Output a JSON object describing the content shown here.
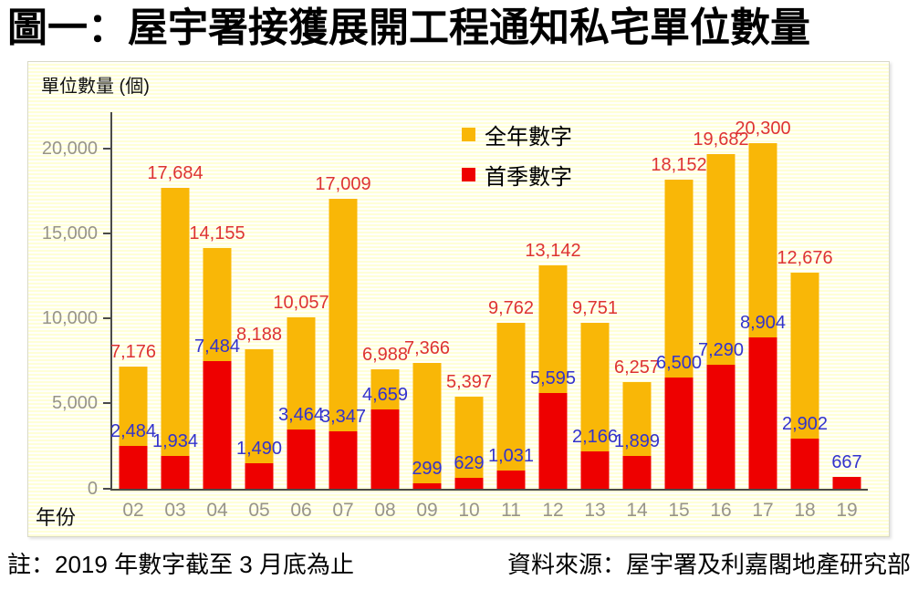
{
  "title": "圖一：屋宇署接獲展開工程通知私宅單位數量",
  "footer": {
    "note": "註：2019 年數字截至 3 月底為止",
    "source": "資料來源：屋宇署及利嘉閣地產研究部"
  },
  "chart_data": {
    "type": "bar",
    "title": "圖一：屋宇署接獲展開工程通知私宅單位數量",
    "xlabel": "年份",
    "ylabel": "單位數量 (個)",
    "ylim": [
      0,
      22000
    ],
    "yticks": [
      0,
      5000,
      10000,
      15000,
      20000
    ],
    "ytick_labels": [
      "0",
      "5,000",
      "10,000",
      "15,000",
      "20,000"
    ],
    "grid": false,
    "legend_position": "top-center",
    "categories": [
      "02",
      "03",
      "04",
      "05",
      "06",
      "07",
      "08",
      "09",
      "10",
      "11",
      "12",
      "13",
      "14",
      "15",
      "16",
      "17",
      "18",
      "19"
    ],
    "series": [
      {
        "name": "全年數字",
        "color": "#F9B707",
        "label_color": "#DD3333",
        "values": [
          7176,
          17684,
          14155,
          8188,
          10057,
          17009,
          6988,
          7366,
          5397,
          9762,
          13142,
          9751,
          6257,
          18152,
          19682,
          20300,
          12676,
          null
        ],
        "labels": [
          "7,176",
          "17,684",
          "14,155",
          "8,188",
          "10,057",
          "17,009",
          "6,988",
          "7,366",
          "5,397",
          "9,762",
          "13,142",
          "9,751",
          "6,257",
          "18,152",
          "19,682",
          "20,300",
          "12,676",
          ""
        ]
      },
      {
        "name": "首季數字",
        "color": "#EE0000",
        "label_color": "#3333CC",
        "values": [
          2484,
          1934,
          7484,
          1490,
          3464,
          3347,
          4659,
          299,
          629,
          1031,
          5595,
          2166,
          1899,
          6500,
          7290,
          8904,
          2902,
          667
        ],
        "labels": [
          "2,484",
          "1,934",
          "7,484",
          "1,490",
          "3,464",
          "3,347",
          "4,659",
          "299",
          "629",
          "1,031",
          "5,595",
          "2,166",
          "1,899",
          "6,500",
          "7,290",
          "8,904",
          "2,902",
          "667"
        ]
      }
    ]
  }
}
